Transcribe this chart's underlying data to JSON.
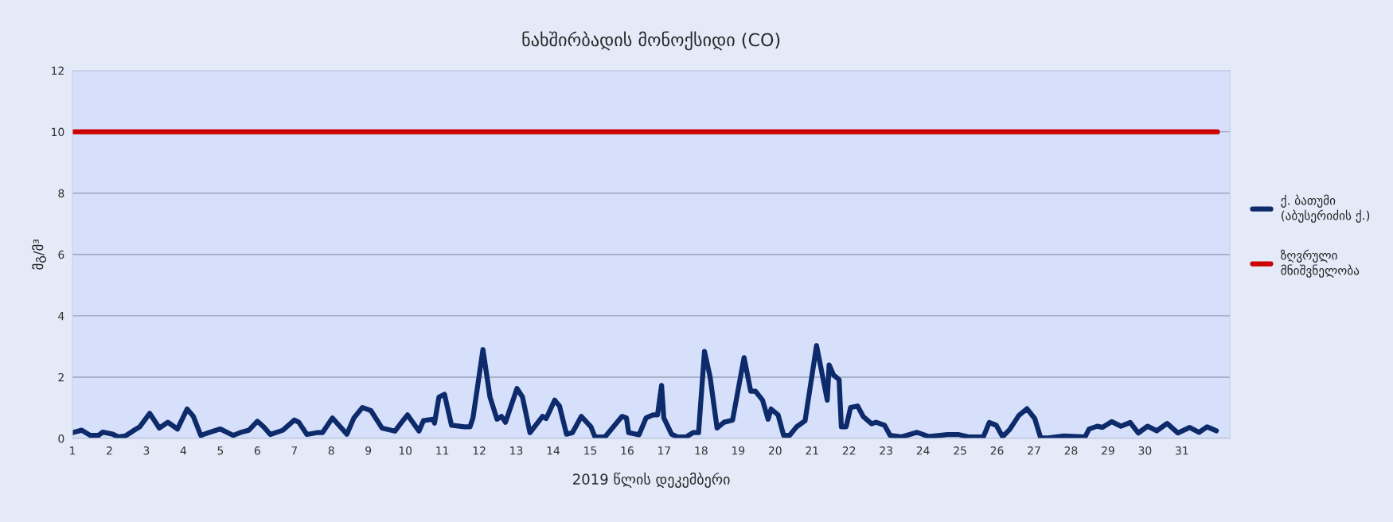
{
  "chart_data": {
    "type": "line",
    "title": "ნახშირბადის მონოქსიდი (CO)",
    "xlabel": "2019 წლის დეკემბერი",
    "ylabel": "მგ/მ³",
    "xlim": [
      1,
      32.3
    ],
    "xticks": [
      1,
      2,
      3,
      4,
      5,
      6,
      7,
      8,
      9,
      10,
      11,
      12,
      13,
      14,
      15,
      16,
      17,
      18,
      19,
      20,
      21,
      22,
      23,
      24,
      25,
      26,
      27,
      28,
      29,
      30,
      31
    ],
    "ylim": [
      0,
      12
    ],
    "yticks": [
      0,
      2,
      4,
      6,
      8,
      10,
      12
    ],
    "grid": "y",
    "legend": "right",
    "marker": "none",
    "line_style": "solid",
    "series": [
      {
        "name": "ქ. ბათუმი (აბუსერიძის ქ.)",
        "color": "#0d2a6b",
        "x": [
          1.0,
          1.25,
          1.48,
          1.7,
          1.82,
          2.09,
          2.24,
          2.43,
          2.63,
          2.82,
          3.09,
          3.35,
          3.58,
          3.84,
          4.1,
          4.27,
          4.47,
          4.73,
          5.0,
          5.35,
          5.58,
          5.77,
          6.0,
          6.17,
          6.35,
          6.69,
          7.0,
          7.12,
          7.34,
          7.61,
          7.76,
          8.03,
          8.42,
          8.61,
          8.84,
          9.07,
          9.37,
          9.72,
          9.87,
          10.06,
          10.37,
          10.49,
          10.75,
          10.79,
          10.91,
          11.06,
          11.25,
          11.6,
          11.75,
          11.83,
          12.1,
          12.29,
          12.48,
          12.6,
          12.71,
          13.02,
          13.17,
          13.37,
          13.71,
          13.81,
          14.04,
          14.17,
          14.36,
          14.52,
          14.76,
          15.02,
          15.13,
          15.4,
          15.86,
          15.98,
          16.04,
          16.32,
          16.51,
          16.7,
          16.82,
          16.93,
          16.99,
          17.2,
          17.36,
          17.59,
          17.78,
          17.93,
          18.09,
          18.24,
          18.43,
          18.62,
          18.85,
          19.16,
          19.34,
          19.47,
          19.66,
          19.81,
          19.89,
          20.08,
          20.23,
          20.39,
          20.58,
          20.81,
          21.12,
          21.41,
          21.46,
          21.58,
          21.73,
          21.79,
          21.92,
          22.04,
          22.23,
          22.38,
          22.61,
          22.73,
          22.96,
          23.11,
          23.42,
          23.84,
          24.16,
          24.66,
          24.95,
          25.23,
          25.63,
          25.79,
          25.98,
          26.15,
          26.34,
          26.59,
          26.81,
          27.02,
          27.18,
          27.38,
          27.81,
          28.38,
          28.49,
          28.71,
          28.85,
          29.1,
          29.35,
          29.6,
          29.82,
          30.07,
          30.32,
          30.6,
          30.89,
          31.21,
          31.46,
          31.68,
          31.93
        ],
        "values": [
          0.19,
          0.27,
          0.1,
          0.1,
          0.21,
          0.14,
          0.05,
          0.08,
          0.24,
          0.38,
          0.82,
          0.34,
          0.53,
          0.31,
          0.96,
          0.72,
          0.1,
          0.21,
          0.31,
          0.1,
          0.21,
          0.27,
          0.56,
          0.38,
          0.13,
          0.27,
          0.6,
          0.53,
          0.13,
          0.19,
          0.19,
          0.67,
          0.14,
          0.67,
          1.01,
          0.91,
          0.34,
          0.24,
          0.48,
          0.77,
          0.24,
          0.58,
          0.63,
          0.5,
          1.35,
          1.44,
          0.43,
          0.38,
          0.38,
          0.67,
          2.9,
          1.35,
          0.63,
          0.72,
          0.53,
          1.63,
          1.35,
          0.19,
          0.72,
          0.65,
          1.25,
          1.06,
          0.14,
          0.19,
          0.72,
          0.38,
          0.05,
          0.05,
          0.72,
          0.67,
          0.19,
          0.12,
          0.67,
          0.77,
          0.77,
          1.73,
          0.67,
          0.14,
          0.05,
          0.05,
          0.19,
          0.19,
          2.84,
          2.02,
          0.34,
          0.53,
          0.6,
          2.64,
          1.54,
          1.54,
          1.25,
          0.63,
          0.96,
          0.77,
          0.1,
          0.1,
          0.38,
          0.58,
          3.03,
          1.25,
          2.4,
          2.07,
          1.92,
          0.38,
          0.38,
          1.01,
          1.06,
          0.72,
          0.48,
          0.53,
          0.43,
          0.1,
          0.05,
          0.2,
          0.06,
          0.13,
          0.13,
          0.05,
          0.05,
          0.52,
          0.43,
          0.06,
          0.29,
          0.75,
          0.97,
          0.65,
          0.02,
          0.02,
          0.08,
          0.05,
          0.31,
          0.4,
          0.36,
          0.55,
          0.4,
          0.52,
          0.18,
          0.4,
          0.25,
          0.49,
          0.18,
          0.36,
          0.2,
          0.38,
          0.25
        ]
      },
      {
        "name": "ზღვრული მნიშვნელობა",
        "color": "#cc0000",
        "x": [
          1.0,
          31.96
        ],
        "values": [
          10,
          10
        ]
      }
    ]
  }
}
